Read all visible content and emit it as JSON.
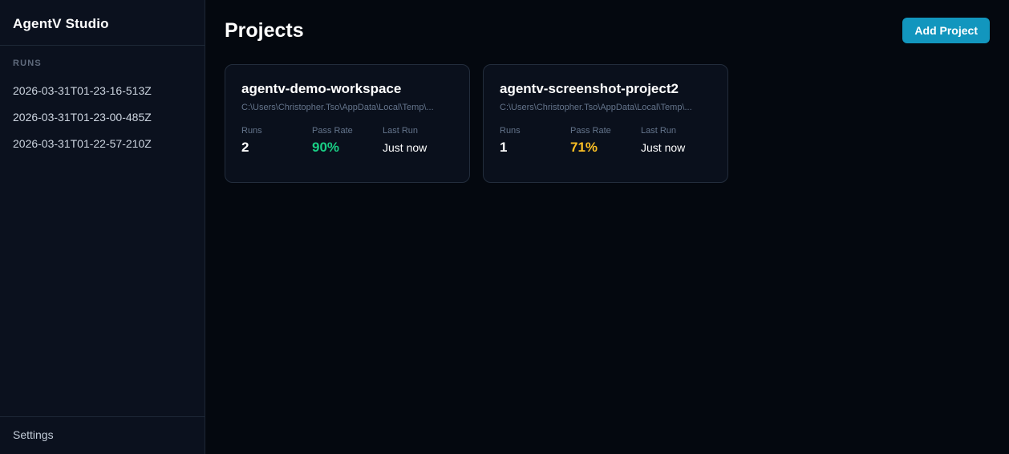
{
  "app": {
    "title": "AgentV Studio"
  },
  "colors": {
    "accent_button": "#1296be",
    "pass_rate_good": "#19cf85",
    "pass_rate_warn": "#fbbf24",
    "sidebar_bg": "#0b111e",
    "main_bg": "#04080f",
    "card_bg": "#0a101c",
    "card_border": "#232d3c",
    "muted_text": "#64748b"
  },
  "sidebar": {
    "runs_section_label": "RUNS",
    "runs": [
      "2026-03-31T01-23-16-513Z",
      "2026-03-31T01-23-00-485Z",
      "2026-03-31T01-22-57-210Z"
    ],
    "settings_label": "Settings"
  },
  "main": {
    "title": "Projects",
    "add_project_label": "Add Project",
    "cards": [
      {
        "name": "agentv-demo-workspace",
        "path": "C:\\Users\\Christopher.Tso\\AppData\\Local\\Temp\\...",
        "runs_label": "Runs",
        "runs_value": "2",
        "pass_rate_label": "Pass Rate",
        "pass_rate_value": "90%",
        "pass_rate_color": "#19cf85",
        "last_run_label": "Last Run",
        "last_run_value": "Just now"
      },
      {
        "name": "agentv-screenshot-project2",
        "path": "C:\\Users\\Christopher.Tso\\AppData\\Local\\Temp\\...",
        "runs_label": "Runs",
        "runs_value": "1",
        "pass_rate_label": "Pass Rate",
        "pass_rate_value": "71%",
        "pass_rate_color": "#fbbf24",
        "last_run_label": "Last Run",
        "last_run_value": "Just now"
      }
    ]
  }
}
